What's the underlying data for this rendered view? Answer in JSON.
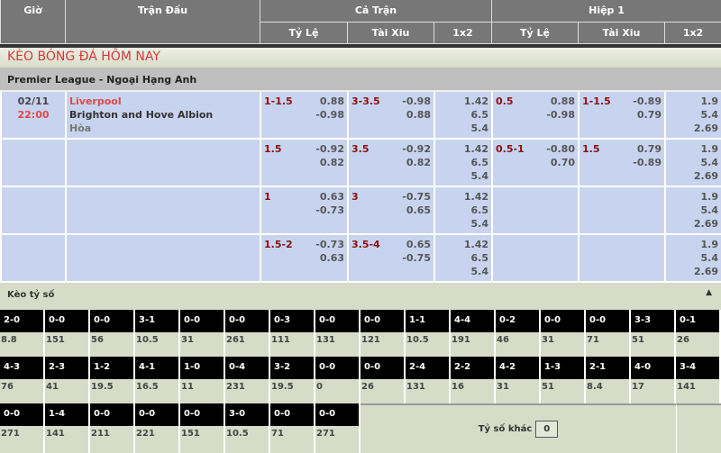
{
  "header": {
    "time": "Giờ",
    "match": "Trận Đấu",
    "full": "Cả Trận",
    "half": "Hiệp 1",
    "hdp": "Tỷ Lệ",
    "ou": "Tài Xiu",
    "x12": "1x2"
  },
  "banner": "KÈO BÓNG ĐÁ HÔM NAY",
  "league": "Premier League - Ngoại Hạng Anh",
  "match": {
    "date": "02/11",
    "time": "22:00",
    "home": "Liverpool",
    "away": "Brighton and Hove Albion",
    "draw": "Hòa"
  },
  "rows": [
    {
      "hdp": "1-1.5",
      "hdp_a": "0.88",
      "hdp_b": "-0.98",
      "ou": "3-3.5",
      "ou_a": "-0.98",
      "ou_b": "0.88",
      "x": [
        "1.42",
        "6.5",
        "5.4"
      ],
      "h_hdp": "0.5",
      "h_hdp_a": "0.88",
      "h_hdp_b": "-0.98",
      "h_ou": "1-1.5",
      "h_ou_a": "-0.89",
      "h_ou_b": "0.79",
      "hx": [
        "1.9",
        "5.4",
        "2.69"
      ]
    },
    {
      "hdp": "1.5",
      "hdp_a": "-0.92",
      "hdp_b": "0.82",
      "ou": "3.5",
      "ou_a": "-0.92",
      "ou_b": "0.82",
      "x": [
        "1.42",
        "6.5",
        "5.4"
      ],
      "h_hdp": "0.5-1",
      "h_hdp_a": "-0.80",
      "h_hdp_b": "0.70",
      "h_ou": "1.5",
      "h_ou_a": "0.79",
      "h_ou_b": "-0.89",
      "hx": [
        "1.9",
        "5.4",
        "2.69"
      ]
    },
    {
      "hdp": "1",
      "hdp_a": "0.63",
      "hdp_b": "-0.73",
      "ou": "3",
      "ou_a": "-0.75",
      "ou_b": "0.65",
      "x": [
        "1.42",
        "6.5",
        "5.4"
      ],
      "h_hdp": "",
      "h_hdp_a": "",
      "h_hdp_b": "",
      "h_ou": "",
      "h_ou_a": "",
      "h_ou_b": "",
      "hx": [
        "1.9",
        "5.4",
        "2.69"
      ]
    },
    {
      "hdp": "1.5-2",
      "hdp_a": "-0.73",
      "hdp_b": "0.63",
      "ou": "3.5-4",
      "ou_a": "0.65",
      "ou_b": "-0.75",
      "x": [
        "1.42",
        "6.5",
        "5.4"
      ],
      "h_hdp": "",
      "h_hdp_a": "",
      "h_hdp_b": "",
      "h_ou": "",
      "h_ou_a": "",
      "h_ou_b": "",
      "hx": [
        "1.9",
        "5.4",
        "2.69"
      ]
    }
  ],
  "scores_title": "Kèo tỷ số",
  "scores": [
    [
      "2-0",
      "8.8"
    ],
    [
      "0-0",
      "151"
    ],
    [
      "0-0",
      "56"
    ],
    [
      "3-1",
      "10.5"
    ],
    [
      "0-0",
      "31"
    ],
    [
      "0-0",
      "261"
    ],
    [
      "0-3",
      "111"
    ],
    [
      "0-0",
      "131"
    ],
    [
      "0-0",
      "121"
    ],
    [
      "1-1",
      "10.5"
    ],
    [
      "4-4",
      "191"
    ],
    [
      "0-2",
      "46"
    ],
    [
      "0-0",
      "31"
    ],
    [
      "0-0",
      "71"
    ],
    [
      "3-3",
      "51"
    ],
    [
      "0-1",
      "26"
    ],
    [
      "4-3",
      "76"
    ],
    [
      "2-3",
      "41"
    ],
    [
      "1-2",
      "19.5"
    ],
    [
      "4-1",
      "16.5"
    ],
    [
      "1-0",
      "11"
    ],
    [
      "0-4",
      "231"
    ],
    [
      "3-2",
      "19.5"
    ],
    [
      "0-0",
      "0"
    ],
    [
      "0-0",
      "26"
    ],
    [
      "2-4",
      "131"
    ],
    [
      "2-2",
      "16"
    ],
    [
      "4-2",
      "31"
    ],
    [
      "1-3",
      "51"
    ],
    [
      "2-1",
      "8.4"
    ],
    [
      "4-0",
      "17"
    ],
    [
      "3-4",
      "141"
    ],
    [
      "0-0",
      "271"
    ],
    [
      "1-4",
      "141"
    ],
    [
      "0-0",
      "211"
    ],
    [
      "0-0",
      "221"
    ],
    [
      "0-0",
      "151"
    ],
    [
      "3-0",
      "10.5"
    ],
    [
      "0-0",
      "71"
    ],
    [
      "0-0",
      "271"
    ]
  ],
  "other_label": "Tỷ số khác",
  "other_value": "0"
}
